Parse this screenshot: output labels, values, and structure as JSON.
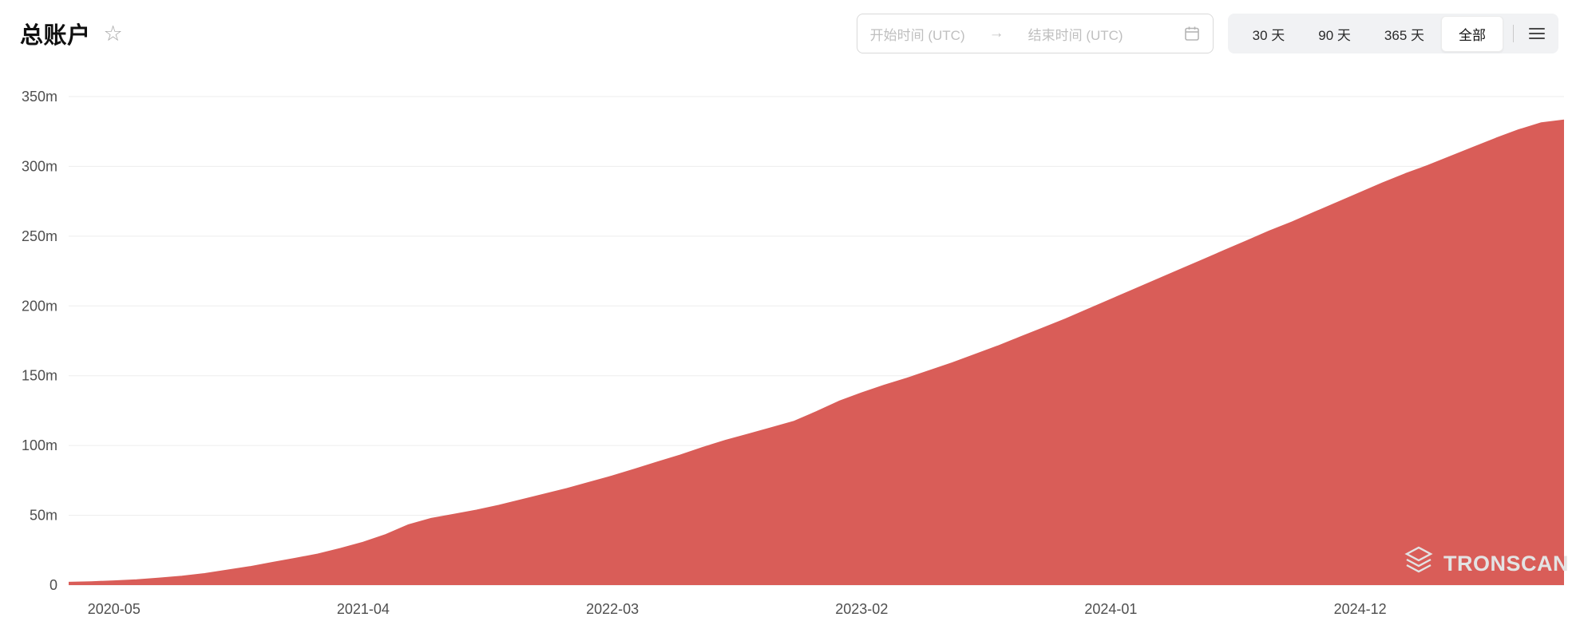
{
  "page": {
    "title": "总账户"
  },
  "icons": {
    "star": "☆",
    "arrow": "→"
  },
  "controls": {
    "date_range": {
      "start_placeholder": "开始时间 (UTC)",
      "end_placeholder": "结束时间 (UTC)"
    },
    "range_buttons": [
      {
        "label": "30 天",
        "active": false
      },
      {
        "label": "90 天",
        "active": false
      },
      {
        "label": "365 天",
        "active": false
      },
      {
        "label": "全部",
        "active": true
      }
    ]
  },
  "watermark": {
    "text": "TRONSCAN"
  },
  "chart_data": {
    "type": "area",
    "title": "总账户",
    "series_name": "总账户",
    "color": "#d95d58",
    "grid": true,
    "legend": "none",
    "ylim": [
      0,
      350
    ],
    "y_unit": "m (millions of accounts)",
    "y_ticks": [
      {
        "value": 0,
        "label": "0"
      },
      {
        "value": 50,
        "label": "50m"
      },
      {
        "value": 100,
        "label": "100m"
      },
      {
        "value": 150,
        "label": "150m"
      },
      {
        "value": 200,
        "label": "200m"
      },
      {
        "value": 250,
        "label": "250m"
      },
      {
        "value": 300,
        "label": "300m"
      },
      {
        "value": 350,
        "label": "350m"
      }
    ],
    "x_ticks": [
      "2020-05",
      "2021-04",
      "2022-03",
      "2023-02",
      "2024-01",
      "2024-12"
    ],
    "x": [
      "2020-03",
      "2020-04",
      "2020-05",
      "2020-06",
      "2020-07",
      "2020-08",
      "2020-09",
      "2020-10",
      "2020-11",
      "2020-12",
      "2021-01",
      "2021-02",
      "2021-03",
      "2021-04",
      "2021-05",
      "2021-06",
      "2021-07",
      "2021-08",
      "2021-09",
      "2021-10",
      "2021-11",
      "2021-12",
      "2022-01",
      "2022-02",
      "2022-03",
      "2022-04",
      "2022-05",
      "2022-06",
      "2022-07",
      "2022-08",
      "2022-09",
      "2022-10",
      "2022-11",
      "2022-12",
      "2023-01",
      "2023-02",
      "2023-03",
      "2023-04",
      "2023-05",
      "2023-06",
      "2023-07",
      "2023-08",
      "2023-09",
      "2023-10",
      "2023-11",
      "2023-12",
      "2024-01",
      "2024-02",
      "2024-03",
      "2024-04",
      "2024-05",
      "2024-06",
      "2024-07",
      "2024-08",
      "2024-09",
      "2024-10",
      "2024-11",
      "2024-12",
      "2025-01",
      "2025-02",
      "2025-03",
      "2025-04",
      "2025-05",
      "2025-06",
      "2025-07",
      "2025-08",
      "2025-09"
    ],
    "values": [
      1.8,
      2.2,
      2.8,
      3.6,
      4.8,
      6.2,
      8.0,
      10.5,
      13.0,
      16.0,
      19.0,
      22.0,
      26.0,
      30.5,
      36.0,
      43.0,
      47.5,
      50.5,
      53.5,
      57.0,
      61.0,
      65.0,
      69.0,
      73.5,
      78.0,
      83.0,
      88.0,
      93.0,
      98.5,
      103.5,
      108.0,
      112.5,
      117.0,
      124.0,
      131.5,
      137.5,
      143.0,
      148.0,
      153.5,
      159.0,
      165.0,
      171.0,
      177.5,
      184.0,
      190.5,
      197.5,
      204.5,
      211.5,
      218.5,
      225.5,
      232.5,
      239.5,
      246.5,
      253.5,
      260.0,
      267.0,
      274.0,
      281.0,
      288.0,
      294.5,
      300.5,
      307.0,
      313.5,
      320.0,
      326.0,
      331.0,
      333.0
    ]
  }
}
